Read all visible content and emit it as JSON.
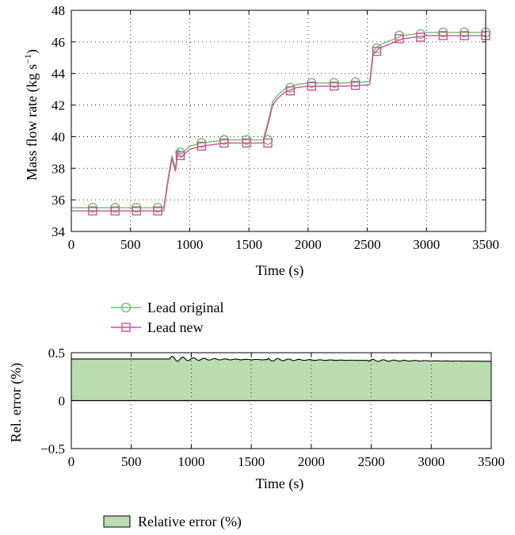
{
  "chart_data": [
    {
      "type": "line",
      "xlabel": "Time (s)",
      "ylabel_main": "Mass flow rate (kg s",
      "ylabel_sup": "−1",
      "ylabel_close": ")",
      "xlim": [
        0,
        3500
      ],
      "ylim": [
        34,
        48
      ],
      "x_ticks": [
        0,
        500,
        1000,
        1500,
        2000,
        2500,
        3000,
        3500
      ],
      "y_ticks": [
        34,
        36,
        38,
        40,
        42,
        44,
        46,
        48
      ],
      "grid": "dotted",
      "legend_position": "below",
      "series": [
        {
          "name": "Lead original",
          "color": "#6cc16a",
          "marker": "circle",
          "x": [
            0,
            780,
            820,
            850,
            880,
            900,
            930,
            1000,
            1100,
            1200,
            1300,
            1500,
            1620,
            1680,
            1700,
            1740,
            1800,
            1900,
            2000,
            2100,
            2300,
            2450,
            2520,
            2550,
            2600,
            2700,
            2800,
            2900,
            3000,
            3500
          ],
          "values": [
            35.5,
            35.5,
            37.5,
            38.8,
            38.0,
            39.2,
            38.9,
            39.4,
            39.6,
            39.7,
            39.8,
            39.8,
            39.8,
            41.5,
            42.2,
            42.6,
            43.0,
            43.3,
            43.4,
            43.4,
            43.4,
            43.45,
            43.5,
            45.4,
            45.8,
            46.1,
            46.4,
            46.5,
            46.6,
            46.6
          ],
          "marker_x": [
            180,
            370,
            550,
            730,
            920,
            1100,
            1290,
            1480,
            1660,
            1850,
            2030,
            2220,
            2400,
            2580,
            2770,
            2950,
            3140,
            3320,
            3500
          ],
          "marker_values": [
            35.5,
            35.5,
            35.5,
            35.5,
            39.0,
            39.6,
            39.8,
            39.8,
            39.8,
            43.1,
            43.4,
            43.4,
            43.45,
            45.6,
            46.4,
            46.5,
            46.6,
            46.6,
            46.6
          ]
        },
        {
          "name": "Lead new",
          "color": "#d64d9a",
          "marker": "square",
          "x": [
            0,
            780,
            820,
            850,
            880,
            900,
            930,
            1000,
            1100,
            1200,
            1300,
            1500,
            1620,
            1680,
            1700,
            1740,
            1800,
            1900,
            2000,
            2100,
            2300,
            2450,
            2520,
            2550,
            2600,
            2700,
            2800,
            2900,
            3000,
            3500
          ],
          "values": [
            35.3,
            35.3,
            37.3,
            38.6,
            37.8,
            39.0,
            38.7,
            39.2,
            39.4,
            39.5,
            39.6,
            39.6,
            39.6,
            41.3,
            42.0,
            42.4,
            42.8,
            43.1,
            43.2,
            43.2,
            43.2,
            43.25,
            43.3,
            45.2,
            45.6,
            45.9,
            46.2,
            46.3,
            46.4,
            46.4
          ],
          "marker_x": [
            180,
            370,
            550,
            730,
            920,
            1100,
            1290,
            1480,
            1660,
            1850,
            2030,
            2220,
            2400,
            2580,
            2770,
            2950,
            3140,
            3320,
            3500
          ],
          "marker_values": [
            35.3,
            35.3,
            35.3,
            35.3,
            38.8,
            39.4,
            39.6,
            39.6,
            39.6,
            42.9,
            43.2,
            43.2,
            43.25,
            45.4,
            46.2,
            46.3,
            46.4,
            46.4,
            46.4
          ]
        }
      ]
    },
    {
      "type": "area",
      "xlabel": "Time (s)",
      "ylabel": "Rel. error (%)",
      "xlim": [
        0,
        3500
      ],
      "ylim": [
        -0.5,
        0.5
      ],
      "x_ticks": [
        0,
        500,
        1000,
        1500,
        2000,
        2500,
        3000,
        3500
      ],
      "y_ticks": [
        -0.5,
        0,
        0.5
      ],
      "y_tick_labels": [
        "−0.5",
        "0",
        "0.5"
      ],
      "grid": "dotted",
      "legend_position": "below",
      "series": [
        {
          "name": "Relative error (%)",
          "color": "#b9dcb0",
          "baseline_level": 0.435,
          "osc_start": 820,
          "final_level": 0.41,
          "osc_amplitude": 0.03
        }
      ]
    }
  ]
}
